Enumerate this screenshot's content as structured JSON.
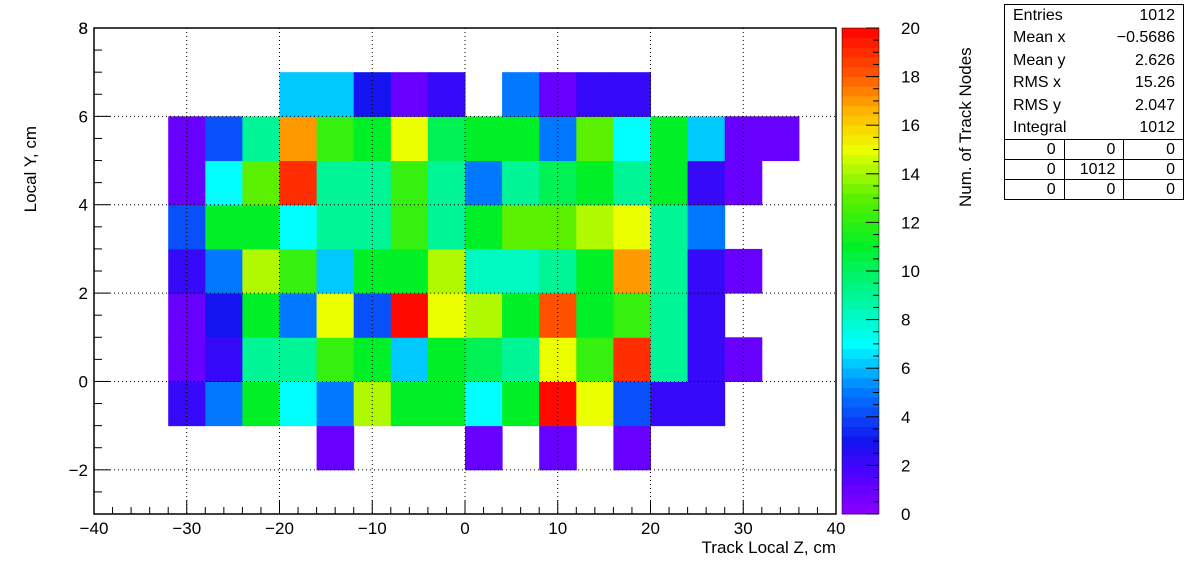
{
  "chart_data": {
    "type": "heatmap",
    "xlabel": "Track Local Z, cm",
    "ylabel": "Local Y, cm",
    "zlabel": "Num. of Track Nodes",
    "xlim": [
      -40,
      40
    ],
    "ylim": [
      -3,
      8
    ],
    "zlim": [
      0,
      20
    ],
    "palette": "rainbow",
    "x_ticks": [
      -40,
      -30,
      -20,
      -10,
      0,
      10,
      20,
      30,
      40
    ],
    "y_ticks": [
      -2,
      0,
      2,
      4,
      6,
      8
    ],
    "z_ticks": [
      0,
      2,
      4,
      6,
      8,
      10,
      12,
      14,
      16,
      18,
      20
    ],
    "x_bin_edges": [
      -40,
      -36,
      -32,
      -28,
      -24,
      -20,
      -16,
      -12,
      -8,
      -4,
      0,
      4,
      8,
      12,
      16,
      20,
      24,
      28,
      32,
      36,
      40
    ],
    "y_bin_edges": [
      -3,
      -2,
      -1,
      0,
      1,
      2,
      3,
      4,
      5,
      6,
      7,
      8
    ],
    "grid": true,
    "cells": [
      {
        "x": -16,
        "y": -2,
        "v": 1
      },
      {
        "x": 0,
        "y": -2,
        "v": 1
      },
      {
        "x": 8,
        "y": -2,
        "v": 1
      },
      {
        "x": 16,
        "y": -2,
        "v": 1
      },
      {
        "x": -32,
        "y": -1,
        "v": 2
      },
      {
        "x": -28,
        "y": -1,
        "v": 5
      },
      {
        "x": -24,
        "y": -1,
        "v": 11
      },
      {
        "x": -20,
        "y": -1,
        "v": 7
      },
      {
        "x": -16,
        "y": -1,
        "v": 5
      },
      {
        "x": -12,
        "y": -1,
        "v": 14
      },
      {
        "x": -8,
        "y": -1,
        "v": 11
      },
      {
        "x": -4,
        "y": -1,
        "v": 11
      },
      {
        "x": 0,
        "y": -1,
        "v": 7
      },
      {
        "x": 4,
        "y": -1,
        "v": 11
      },
      {
        "x": 8,
        "y": -1,
        "v": 20
      },
      {
        "x": 12,
        "y": -1,
        "v": 15
      },
      {
        "x": 16,
        "y": -1,
        "v": 4
      },
      {
        "x": 20,
        "y": -1,
        "v": 2
      },
      {
        "x": 24,
        "y": -1,
        "v": 2
      },
      {
        "x": -32,
        "y": 0,
        "v": 1
      },
      {
        "x": -28,
        "y": 0,
        "v": 2
      },
      {
        "x": -24,
        "y": 0,
        "v": 9
      },
      {
        "x": -20,
        "y": 0,
        "v": 9
      },
      {
        "x": -16,
        "y": 0,
        "v": 12
      },
      {
        "x": -12,
        "y": 0,
        "v": 11
      },
      {
        "x": -8,
        "y": 0,
        "v": 6
      },
      {
        "x": -4,
        "y": 0,
        "v": 11
      },
      {
        "x": 0,
        "y": 0,
        "v": 10
      },
      {
        "x": 4,
        "y": 0,
        "v": 9
      },
      {
        "x": 8,
        "y": 0,
        "v": 15
      },
      {
        "x": 12,
        "y": 0,
        "v": 12
      },
      {
        "x": 16,
        "y": 0,
        "v": 19
      },
      {
        "x": 20,
        "y": 0,
        "v": 9
      },
      {
        "x": 24,
        "y": 0,
        "v": 2
      },
      {
        "x": 28,
        "y": 0,
        "v": 1
      },
      {
        "x": -32,
        "y": 1,
        "v": 1
      },
      {
        "x": -28,
        "y": 1,
        "v": 3
      },
      {
        "x": -24,
        "y": 1,
        "v": 11
      },
      {
        "x": -20,
        "y": 1,
        "v": 5
      },
      {
        "x": -16,
        "y": 1,
        "v": 15
      },
      {
        "x": -12,
        "y": 1,
        "v": 4
      },
      {
        "x": -8,
        "y": 1,
        "v": 20
      },
      {
        "x": -4,
        "y": 1,
        "v": 15
      },
      {
        "x": 0,
        "y": 1,
        "v": 14
      },
      {
        "x": 4,
        "y": 1,
        "v": 11
      },
      {
        "x": 8,
        "y": 1,
        "v": 18
      },
      {
        "x": 12,
        "y": 1,
        "v": 11
      },
      {
        "x": 16,
        "y": 1,
        "v": 12
      },
      {
        "x": 20,
        "y": 1,
        "v": 9
      },
      {
        "x": 24,
        "y": 1,
        "v": 2
      },
      {
        "x": -32,
        "y": 2,
        "v": 2
      },
      {
        "x": -28,
        "y": 2,
        "v": 5
      },
      {
        "x": -24,
        "y": 2,
        "v": 14
      },
      {
        "x": -20,
        "y": 2,
        "v": 12
      },
      {
        "x": -16,
        "y": 2,
        "v": 6
      },
      {
        "x": -12,
        "y": 2,
        "v": 11
      },
      {
        "x": -8,
        "y": 2,
        "v": 11
      },
      {
        "x": -4,
        "y": 2,
        "v": 14
      },
      {
        "x": 0,
        "y": 2,
        "v": 8
      },
      {
        "x": 4,
        "y": 2,
        "v": 8
      },
      {
        "x": 8,
        "y": 2,
        "v": 9
      },
      {
        "x": 12,
        "y": 2,
        "v": 11
      },
      {
        "x": 16,
        "y": 2,
        "v": 17
      },
      {
        "x": 20,
        "y": 2,
        "v": 9
      },
      {
        "x": 24,
        "y": 2,
        "v": 2
      },
      {
        "x": 28,
        "y": 2,
        "v": 1
      },
      {
        "x": -32,
        "y": 3,
        "v": 4
      },
      {
        "x": -28,
        "y": 3,
        "v": 11
      },
      {
        "x": -24,
        "y": 3,
        "v": 11
      },
      {
        "x": -20,
        "y": 3,
        "v": 7
      },
      {
        "x": -16,
        "y": 3,
        "v": 9
      },
      {
        "x": -12,
        "y": 3,
        "v": 9
      },
      {
        "x": -8,
        "y": 3,
        "v": 12
      },
      {
        "x": -4,
        "y": 3,
        "v": 9
      },
      {
        "x": 0,
        "y": 3,
        "v": 11
      },
      {
        "x": 4,
        "y": 3,
        "v": 13
      },
      {
        "x": 8,
        "y": 3,
        "v": 13
      },
      {
        "x": 12,
        "y": 3,
        "v": 14
      },
      {
        "x": 16,
        "y": 3,
        "v": 15
      },
      {
        "x": 20,
        "y": 3,
        "v": 9
      },
      {
        "x": 24,
        "y": 3,
        "v": 5
      },
      {
        "x": -32,
        "y": 4,
        "v": 1
      },
      {
        "x": -28,
        "y": 4,
        "v": 7
      },
      {
        "x": -24,
        "y": 4,
        "v": 13
      },
      {
        "x": -20,
        "y": 4,
        "v": 19
      },
      {
        "x": -16,
        "y": 4,
        "v": 9
      },
      {
        "x": -12,
        "y": 4,
        "v": 9
      },
      {
        "x": -8,
        "y": 4,
        "v": 12
      },
      {
        "x": -4,
        "y": 4,
        "v": 9
      },
      {
        "x": 0,
        "y": 4,
        "v": 5
      },
      {
        "x": 4,
        "y": 4,
        "v": 9
      },
      {
        "x": 8,
        "y": 4,
        "v": 10
      },
      {
        "x": 12,
        "y": 4,
        "v": 11
      },
      {
        "x": 16,
        "y": 4,
        "v": 9
      },
      {
        "x": 20,
        "y": 4,
        "v": 11
      },
      {
        "x": 24,
        "y": 4,
        "v": 2
      },
      {
        "x": 28,
        "y": 4,
        "v": 1
      },
      {
        "x": -32,
        "y": 5,
        "v": 1
      },
      {
        "x": -28,
        "y": 5,
        "v": 4
      },
      {
        "x": -24,
        "y": 5,
        "v": 9
      },
      {
        "x": -20,
        "y": 5,
        "v": 17
      },
      {
        "x": -16,
        "y": 5,
        "v": 12
      },
      {
        "x": -12,
        "y": 5,
        "v": 11
      },
      {
        "x": -8,
        "y": 5,
        "v": 15
      },
      {
        "x": -4,
        "y": 5,
        "v": 10
      },
      {
        "x": 0,
        "y": 5,
        "v": 11
      },
      {
        "x": 4,
        "y": 5,
        "v": 11
      },
      {
        "x": 8,
        "y": 5,
        "v": 5
      },
      {
        "x": 12,
        "y": 5,
        "v": 13
      },
      {
        "x": 16,
        "y": 5,
        "v": 7
      },
      {
        "x": 20,
        "y": 5,
        "v": 11
      },
      {
        "x": 24,
        "y": 5,
        "v": 6
      },
      {
        "x": 28,
        "y": 5,
        "v": 1
      },
      {
        "x": 32,
        "y": 5,
        "v": 1
      },
      {
        "x": -20,
        "y": 6,
        "v": 6
      },
      {
        "x": -16,
        "y": 6,
        "v": 6
      },
      {
        "x": -12,
        "y": 6,
        "v": 3
      },
      {
        "x": -8,
        "y": 6,
        "v": 1
      },
      {
        "x": -4,
        "y": 6,
        "v": 2
      },
      {
        "x": 4,
        "y": 6,
        "v": 5
      },
      {
        "x": 8,
        "y": 6,
        "v": 1
      },
      {
        "x": 12,
        "y": 6,
        "v": 2
      },
      {
        "x": 16,
        "y": 6,
        "v": 2
      }
    ]
  },
  "stats": {
    "rows": [
      {
        "label": "Entries",
        "value": "1012"
      },
      {
        "label": "Mean x",
        "value": "−0.5686"
      },
      {
        "label": "Mean y",
        "value": "2.626"
      },
      {
        "label": "RMS x",
        "value": "15.26"
      },
      {
        "label": "RMS y",
        "value": "2.047"
      },
      {
        "label": "Integral",
        "value": "1012"
      }
    ],
    "grid": [
      [
        "0",
        "0",
        "0"
      ],
      [
        "0",
        "1012",
        "0"
      ],
      [
        "0",
        "0",
        "0"
      ]
    ]
  }
}
